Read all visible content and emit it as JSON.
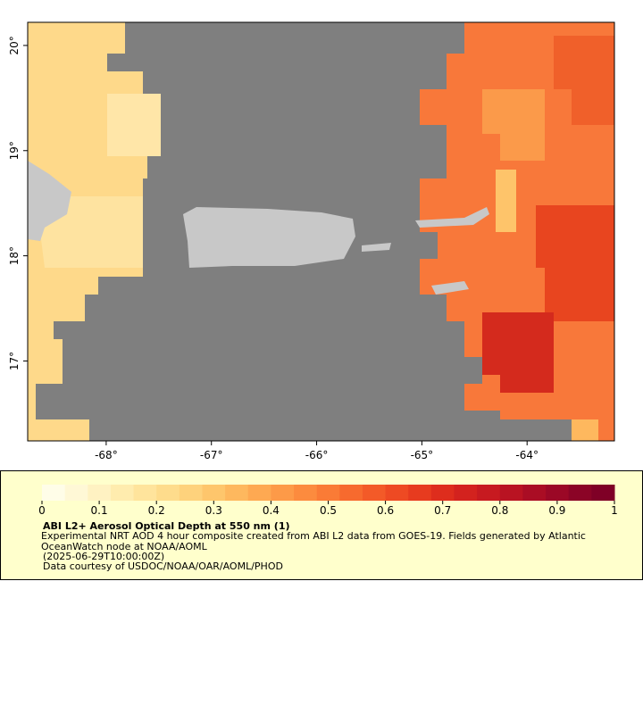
{
  "map": {
    "lonlim": [
      -68.746,
      -63.17
    ],
    "latlim": [
      16.24,
      20.22
    ],
    "lon_ticks": [
      {
        "value": -68,
        "label": "-68°"
      },
      {
        "value": -67,
        "label": "-67°"
      },
      {
        "value": -66,
        "label": "-66°"
      },
      {
        "value": -65,
        "label": "-65°"
      },
      {
        "value": -64,
        "label": "-64°"
      }
    ],
    "lat_ticks": [
      {
        "value": 17,
        "label": "17°"
      },
      {
        "value": 18,
        "label": "18°"
      },
      {
        "value": 19,
        "label": "19°"
      },
      {
        "value": 20,
        "label": "20°"
      }
    ]
  },
  "colorbar": {
    "range": [
      0,
      1
    ],
    "ticks": [
      0,
      0.1,
      0.2,
      0.3,
      0.4,
      0.5,
      0.6,
      0.7,
      0.8,
      0.9,
      1
    ],
    "colors": [
      "#fffde8",
      "#fff8d6",
      "#fff2c2",
      "#ffecae",
      "#ffe49c",
      "#fedc8c",
      "#fed27c",
      "#fec66c",
      "#feb85e",
      "#fea952",
      "#fd9a48",
      "#fc8b3e",
      "#fa7b36",
      "#f76a2e",
      "#f35a28",
      "#ee4a23",
      "#e73b1f",
      "#de2d1d",
      "#d3221e",
      "#c71a20",
      "#b91322",
      "#aa0d24",
      "#9b0826",
      "#8b0426",
      "#7f0026"
    ],
    "title": "ABI L2+ Aerosol Optical Depth at 550 nm (1)",
    "description": "Experimental NRT AOD 4 hour composite created from ABI L2 data from GOES-19. Fields generated by Atlantic OceanWatch node at NOAA/AOML",
    "time": "(2025-06-29T10:00:00Z)",
    "credit": "Data courtesy of USDOC/NOAA/OAR/AOML/PHOD"
  }
}
